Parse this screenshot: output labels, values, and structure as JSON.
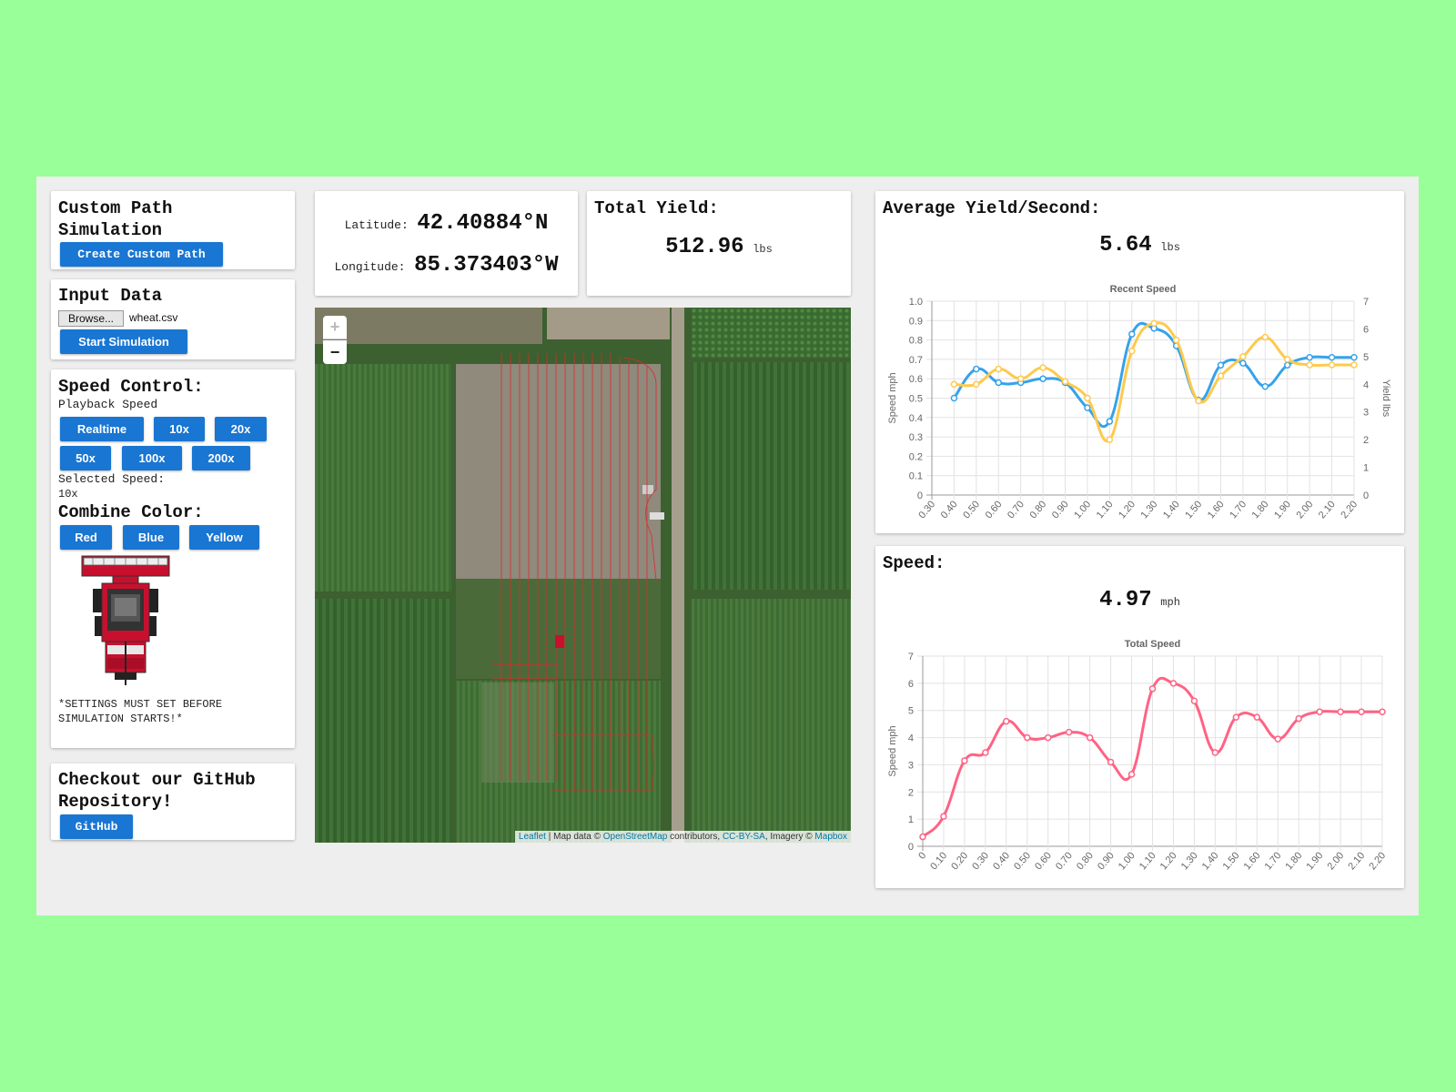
{
  "custom_path": {
    "title": "Custom Path Simulation",
    "button": "Create Custom Path"
  },
  "input_data": {
    "title": "Input Data",
    "browse": "Browse...",
    "filename": "wheat.csv",
    "start": "Start Simulation"
  },
  "speed_control": {
    "title": "Speed Control:",
    "playback_label": "Playback Speed",
    "buttons": [
      "Realtime",
      "10x",
      "20x",
      "50x",
      "100x",
      "200x"
    ],
    "selected_label": "Selected Speed:",
    "selected_value": "10x"
  },
  "combine_color": {
    "title": "Combine Color:",
    "buttons": [
      "Red",
      "Blue",
      "Yellow"
    ],
    "note": "*SETTINGS MUST SET BEFORE SIMULATION STARTS!*"
  },
  "github": {
    "title": "Checkout our GitHub Repository!",
    "button": "GitHub"
  },
  "coords": {
    "lat_label": "Latitude:",
    "lat_value": "42.40884°N",
    "lon_label": "Longitude:",
    "lon_value": "85.373403°W"
  },
  "total_yield": {
    "title": "Total Yield:",
    "value": "512.96",
    "unit": "lbs"
  },
  "avg_yield": {
    "title": "Average Yield/Second:",
    "value": "5.64",
    "unit": "lbs"
  },
  "speed": {
    "title": "Speed:",
    "value": "4.97",
    "unit": "mph"
  },
  "map": {
    "zoom_in": "+",
    "zoom_out": "−",
    "attribution": {
      "leaflet": "Leaflet",
      "sep1": " | Map data © ",
      "osm": "OpenStreetMap",
      "contrib": " contributors, ",
      "license": "CC-BY-SA",
      "imagery": ", Imagery © ",
      "mapbox": "Mapbox"
    }
  },
  "colors": {
    "accent": "#1976d2",
    "background": "#99ff99",
    "panel": "#eeeeee",
    "speed_line": "#36a2eb",
    "yield_line": "#ffc94d",
    "total_speed_line": "#ff6384",
    "path_color": "#e0282a"
  },
  "chart_data": [
    {
      "type": "line",
      "title": "Recent Speed",
      "categories": [
        "0.30",
        "0.40",
        "0.50",
        "0.60",
        "0.70",
        "0.80",
        "0.90",
        "1.00",
        "1.10",
        "1.20",
        "1.30",
        "1.40",
        "1.50",
        "1.60",
        "1.70",
        "1.80",
        "1.90",
        "2.00",
        "2.10",
        "2.20"
      ],
      "ylabel": "Speed mph",
      "y2label": "Yield lbs",
      "ylim": [
        0,
        1.0
      ],
      "y2lim": [
        0,
        7
      ],
      "yticks": [
        "0",
        "0.1",
        "0.2",
        "0.3",
        "0.4",
        "0.5",
        "0.6",
        "0.7",
        "0.8",
        "0.9",
        "1.0"
      ],
      "y2ticks": [
        "0",
        "1",
        "2",
        "3",
        "4",
        "5",
        "6",
        "7"
      ],
      "series": [
        {
          "axis": "left",
          "values": [
            null,
            0.5,
            0.65,
            0.58,
            0.58,
            0.6,
            0.58,
            0.45,
            0.38,
            0.83,
            0.86,
            0.77,
            0.49,
            0.67,
            0.68,
            0.56,
            0.67,
            0.71,
            0.71,
            0.71
          ]
        },
        {
          "axis": "right",
          "values": [
            null,
            4.0,
            4.0,
            4.55,
            4.2,
            4.6,
            4.1,
            3.5,
            2.0,
            5.2,
            6.2,
            5.6,
            3.4,
            4.3,
            5.0,
            5.7,
            4.9,
            4.7,
            4.7,
            4.7
          ]
        }
      ]
    },
    {
      "type": "line",
      "title": "Total Speed",
      "categories": [
        "0",
        "0.10",
        "0.20",
        "0.30",
        "0.40",
        "0.50",
        "0.60",
        "0.70",
        "0.80",
        "0.90",
        "1.00",
        "1.10",
        "1.20",
        "1.30",
        "1.40",
        "1.50",
        "1.60",
        "1.70",
        "1.80",
        "1.90",
        "2.00",
        "2.10",
        "2.20"
      ],
      "ylabel": "Speed mph",
      "ylim": [
        0,
        7
      ],
      "yticks": [
        "0",
        "1",
        "2",
        "3",
        "4",
        "5",
        "6",
        "7"
      ],
      "series": [
        {
          "values": [
            0.35,
            1.1,
            3.15,
            3.45,
            4.6,
            4.0,
            4.0,
            4.2,
            4.0,
            3.1,
            2.65,
            5.8,
            6.0,
            5.35,
            3.45,
            4.75,
            4.75,
            3.95,
            4.7,
            4.95,
            4.95,
            4.95,
            4.95
          ]
        }
      ]
    }
  ]
}
